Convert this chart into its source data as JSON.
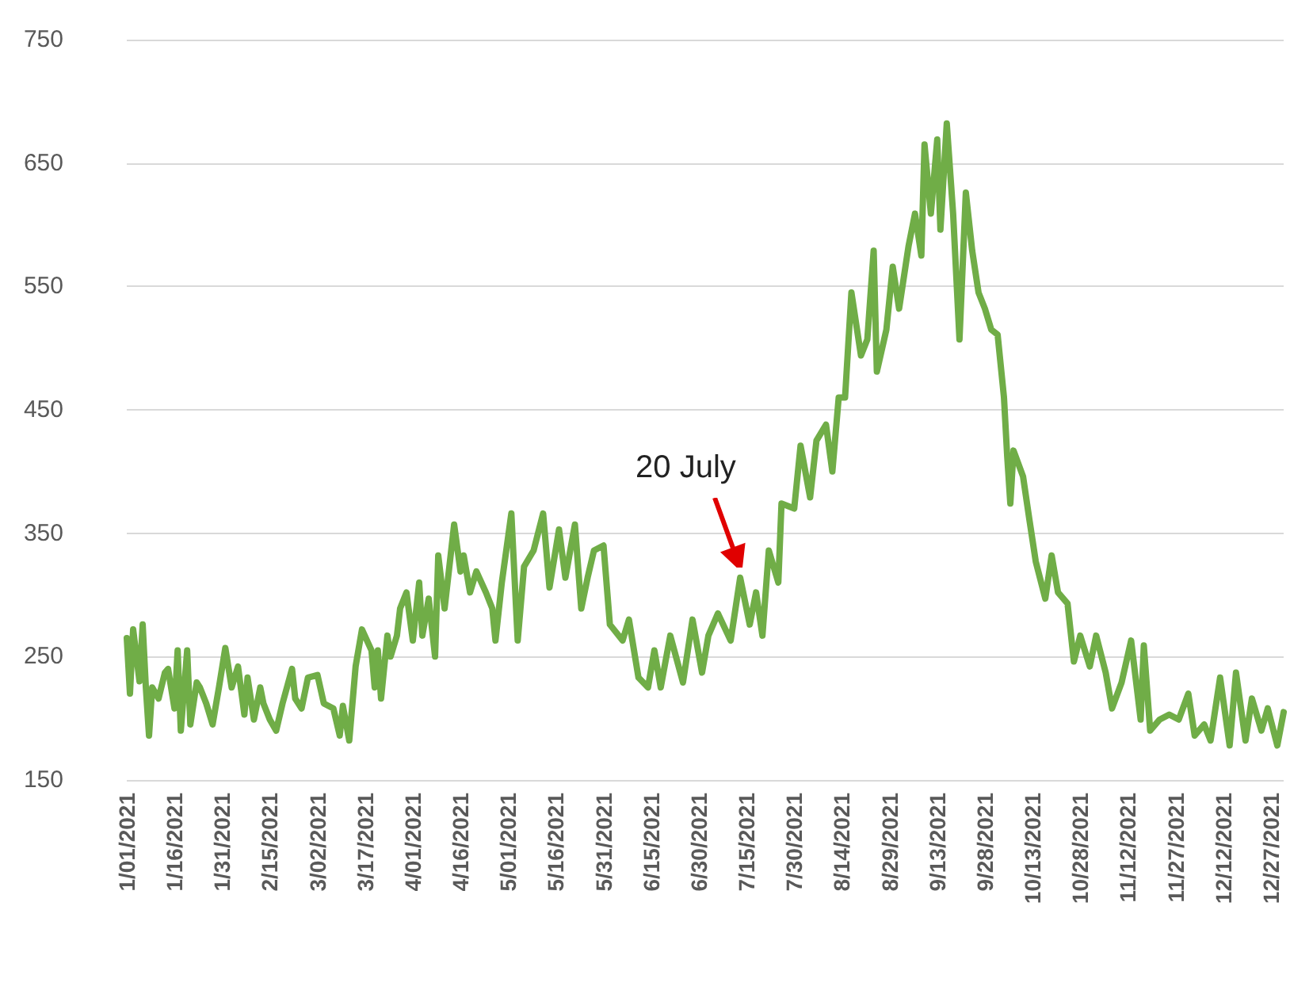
{
  "chart_data": {
    "type": "line",
    "line_style": "solid",
    "marker": "none",
    "grid": "y",
    "xlim": [
      "2021-01-01",
      "2021-12-31"
    ],
    "ylim": [
      150,
      750
    ],
    "yticks": [
      150,
      250,
      350,
      450,
      550,
      650,
      750
    ],
    "xticks": [
      {
        "value": "2021-01-01",
        "label": "1/01/2021"
      },
      {
        "value": "2021-01-16",
        "label": "1/16/2021"
      },
      {
        "value": "2021-01-31",
        "label": "1/31/2021"
      },
      {
        "value": "2021-02-15",
        "label": "2/15/2021"
      },
      {
        "value": "2021-03-02",
        "label": "3/02/2021"
      },
      {
        "value": "2021-03-17",
        "label": "3/17/2021"
      },
      {
        "value": "2021-04-01",
        "label": "4/01/2021"
      },
      {
        "value": "2021-04-16",
        "label": "4/16/2021"
      },
      {
        "value": "2021-05-01",
        "label": "5/01/2021"
      },
      {
        "value": "2021-05-16",
        "label": "5/16/2021"
      },
      {
        "value": "2021-05-31",
        "label": "5/31/2021"
      },
      {
        "value": "2021-06-15",
        "label": "6/15/2021"
      },
      {
        "value": "2021-06-30",
        "label": "6/30/2021"
      },
      {
        "value": "2021-07-15",
        "label": "7/15/2021"
      },
      {
        "value": "2021-07-30",
        "label": "7/30/2021"
      },
      {
        "value": "2021-08-14",
        "label": "8/14/2021"
      },
      {
        "value": "2021-08-29",
        "label": "8/29/2021"
      },
      {
        "value": "2021-09-13",
        "label": "9/13/2021"
      },
      {
        "value": "2021-09-28",
        "label": "9/28/2021"
      },
      {
        "value": "2021-10-13",
        "label": "10/13/2021"
      },
      {
        "value": "2021-10-28",
        "label": "10/28/2021"
      },
      {
        "value": "2021-11-12",
        "label": "11/12/2021"
      },
      {
        "value": "2021-11-27",
        "label": "11/27/2021"
      },
      {
        "value": "2021-12-12",
        "label": "12/12/2021"
      },
      {
        "value": "2021-12-27",
        "label": "12/27/2021"
      }
    ],
    "annotations": [
      {
        "text": "20 July",
        "x": "2021-07-13",
        "y": 314
      }
    ],
    "series": [
      {
        "color": "#70ad47",
        "x": [
          "2021-01-01",
          "2021-01-02",
          "2021-01-03",
          "2021-01-05",
          "2021-01-06",
          "2021-01-07",
          "2021-01-08",
          "2021-01-09",
          "2021-01-11",
          "2021-01-13",
          "2021-01-14",
          "2021-01-16",
          "2021-01-17",
          "2021-01-18",
          "2021-01-20",
          "2021-01-21",
          "2021-01-23",
          "2021-01-24",
          "2021-01-26",
          "2021-01-28",
          "2021-01-30",
          "2021-02-01",
          "2021-02-03",
          "2021-02-05",
          "2021-02-07",
          "2021-02-08",
          "2021-02-10",
          "2021-02-12",
          "2021-02-13",
          "2021-02-15",
          "2021-02-17",
          "2021-02-19",
          "2021-02-22",
          "2021-02-23",
          "2021-02-25",
          "2021-02-27",
          "2021-03-02",
          "2021-03-04",
          "2021-03-07",
          "2021-03-09",
          "2021-03-10",
          "2021-03-12",
          "2021-03-14",
          "2021-03-16",
          "2021-03-19",
          "2021-03-20",
          "2021-03-21",
          "2021-03-22",
          "2021-03-24",
          "2021-03-25",
          "2021-03-27",
          "2021-03-28",
          "2021-03-30",
          "2021-04-01",
          "2021-04-03",
          "2021-04-04",
          "2021-04-06",
          "2021-04-08",
          "2021-04-09",
          "2021-04-11",
          "2021-04-14",
          "2021-04-16",
          "2021-04-17",
          "2021-04-19",
          "2021-04-21",
          "2021-04-24",
          "2021-04-26",
          "2021-04-27",
          "2021-04-29",
          "2021-05-02",
          "2021-05-04",
          "2021-05-06",
          "2021-05-09",
          "2021-05-12",
          "2021-05-14",
          "2021-05-17",
          "2021-05-19",
          "2021-05-22",
          "2021-05-24",
          "2021-05-26",
          "2021-05-28",
          "2021-05-31",
          "2021-06-02",
          "2021-06-06",
          "2021-06-08",
          "2021-06-11",
          "2021-06-14",
          "2021-06-16",
          "2021-06-18",
          "2021-06-21",
          "2021-06-25",
          "2021-06-28",
          "2021-07-01",
          "2021-07-03",
          "2021-07-06",
          "2021-07-10",
          "2021-07-13",
          "2021-07-16",
          "2021-07-18",
          "2021-07-20",
          "2021-07-22",
          "2021-07-25",
          "2021-07-26",
          "2021-07-30",
          "2021-08-01",
          "2021-08-04",
          "2021-08-06",
          "2021-08-09",
          "2021-08-11",
          "2021-08-13",
          "2021-08-15",
          "2021-08-17",
          "2021-08-20",
          "2021-08-22",
          "2021-08-24",
          "2021-08-25",
          "2021-08-28",
          "2021-08-30",
          "2021-09-01",
          "2021-09-04",
          "2021-09-06",
          "2021-09-08",
          "2021-09-09",
          "2021-09-11",
          "2021-09-13",
          "2021-09-14",
          "2021-09-16",
          "2021-09-18",
          "2021-09-20",
          "2021-09-22",
          "2021-09-24",
          "2021-09-26",
          "2021-09-28",
          "2021-09-30",
          "2021-10-02",
          "2021-10-04",
          "2021-10-05",
          "2021-10-06",
          "2021-10-07",
          "2021-10-10",
          "2021-10-12",
          "2021-10-14",
          "2021-10-17",
          "2021-10-19",
          "2021-10-21",
          "2021-10-24",
          "2021-10-26",
          "2021-10-28",
          "2021-10-31",
          "2021-11-02",
          "2021-11-05",
          "2021-11-07",
          "2021-11-10",
          "2021-11-13",
          "2021-11-16",
          "2021-11-17",
          "2021-11-19",
          "2021-11-22",
          "2021-11-25",
          "2021-11-28",
          "2021-12-01",
          "2021-12-03",
          "2021-12-06",
          "2021-12-08",
          "2021-12-11",
          "2021-12-14",
          "2021-12-16",
          "2021-12-19",
          "2021-12-21",
          "2021-12-24",
          "2021-12-26",
          "2021-12-29",
          "2021-12-31"
        ],
        "values": [
          265,
          220,
          272,
          230,
          276,
          225,
          186,
          225,
          216,
          237,
          240,
          208,
          255,
          190,
          255,
          195,
          229,
          225,
          212,
          195,
          225,
          257,
          225,
          242,
          203,
          233,
          199,
          225,
          212,
          199,
          190,
          212,
          240,
          216,
          208,
          233,
          235,
          212,
          208,
          186,
          210,
          182,
          242,
          272,
          255,
          225,
          255,
          216,
          267,
          250,
          267,
          289,
          302,
          263,
          310,
          267,
          297,
          250,
          332,
          289,
          357,
          319,
          332,
          302,
          319,
          302,
          289,
          263,
          310,
          366,
          263,
          323,
          336,
          366,
          306,
          353,
          314,
          357,
          289,
          314,
          336,
          340,
          276,
          263,
          280,
          233,
          225,
          255,
          225,
          267,
          229,
          280,
          237,
          267,
          285,
          263,
          314,
          276,
          302,
          267,
          336,
          310,
          374,
          370,
          421,
          379,
          425,
          438,
          400,
          460,
          460,
          545,
          494,
          507,
          579,
          481,
          515,
          566,
          532,
          583,
          609,
          575,
          665,
          609,
          669,
          596,
          682,
          609,
          507,
          626,
          579,
          545,
          532,
          515,
          511,
          460,
          413,
          374,
          417,
          396,
          361,
          327,
          297,
          332,
          302,
          293,
          246,
          267,
          242,
          267,
          237,
          208,
          229,
          263,
          199,
          259,
          190,
          199,
          203,
          199,
          220,
          186,
          195,
          182,
          233,
          178,
          237,
          182,
          216,
          190,
          208,
          178,
          205
        ]
      }
    ]
  }
}
